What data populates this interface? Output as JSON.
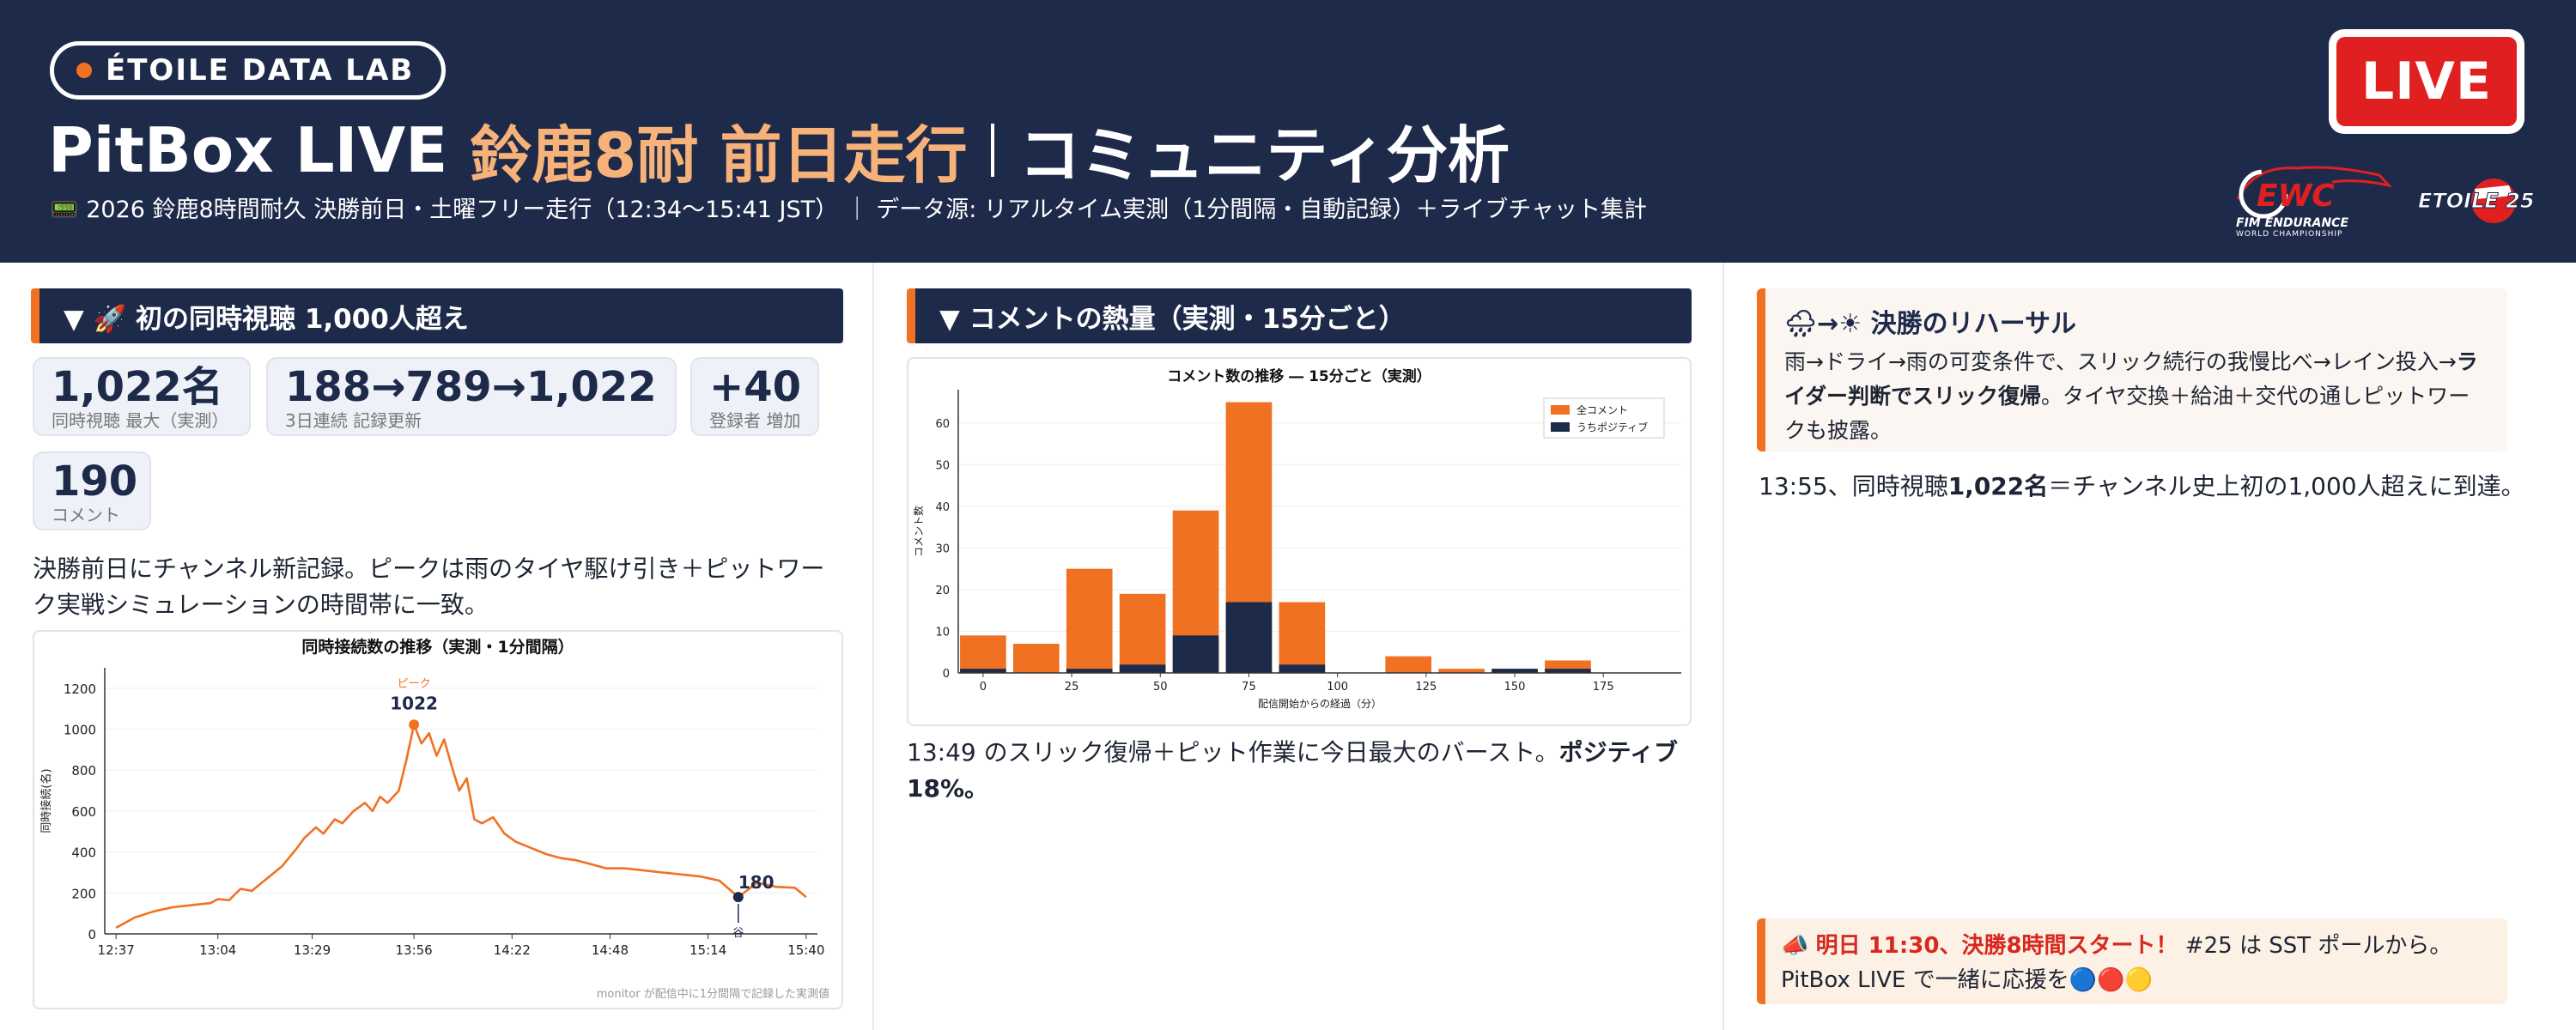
{
  "header": {
    "badge": "ÉTOILE DATA LAB",
    "title_main": "PitBox LIVE",
    "title_highlight": "鈴鹿8耐 前日走行",
    "title_tail": "コミュニティ分析",
    "subtitle_icon": "📟",
    "subtitle": "2026 鈴鹿8時間耐久 決勝前日・土曜フリー走行（12:34〜15:41 JST） ｜ データ源: リアルタイム実測（1分間隔・自動記録）＋ライブチャット集計",
    "live_label": "LIVE",
    "ewc_logo_text": "EWC",
    "ewc_sub1": "FIM ENDURANCE",
    "ewc_sub2": "WORLD CHAMPIONSHIP",
    "etoile_logo_text": "ETOILE 25"
  },
  "col1": {
    "section_title": "▼ 🚀 初の同時視聴 1,000人超え",
    "stats": [
      {
        "value": "1,022名",
        "label": "同時視聴 最大（実測）"
      },
      {
        "value": "188→789→1,022",
        "label": "3日連続 記録更新"
      },
      {
        "value": "+40",
        "label": "登録者 増加"
      },
      {
        "value": "190",
        "label": "コメント"
      }
    ],
    "paragraph": "決勝前日にチャンネル新記録。ピークは雨のタイヤ駆け引き＋ピットワーク実戦シミュレーションの時間帯に一致。",
    "footnote": "monitor が配信中に1分間隔で記録した実測値"
  },
  "col2": {
    "section_title": "▼ コメントの熱量（実測・15分ごと）",
    "paragraph_normal": "13:49 のスリック復帰＋ピット作業に今日最大のバースト。",
    "paragraph_bold": "ポジティブ 18%。"
  },
  "col3": {
    "rehearsal_title_icon": "🌧→☀",
    "rehearsal_title": "決勝のリハーサル",
    "rehearsal_body_1": "雨→ドライ→雨の可変条件で、スリック続行の我慢比べ→レイン投入→",
    "rehearsal_body_bold": "ライダー判断でスリック復帰",
    "rehearsal_body_2": "。タイヤ交換＋給油＋交代の通しピットワークも披露。",
    "note_1": "13:55、同時視聴",
    "note_bold": "1,022名",
    "note_2": "＝チャンネル史上初の1,000人超えに到達。",
    "tomorrow_icon": "📣",
    "tomorrow_red": "明日 11:30、決勝8時間スタート！",
    "tomorrow_text": " #25 は SST ポールから。PitBox LIVE で一緒に応援を🔵🔴🟡"
  },
  "colors": {
    "navy": "#1e2a4a",
    "orange": "#f07122",
    "live_red": "#e02020",
    "accent_text": "#f7b27a"
  },
  "chart_data": [
    {
      "type": "line",
      "title": "同時接続数の推移（実測・1分間隔）",
      "ylabel": "同時接続(名)",
      "xlabel": "",
      "x_ticks": [
        "12:37",
        "13:04",
        "13:29",
        "13:56",
        "14:22",
        "14:48",
        "15:14",
        "15:40"
      ],
      "ylim": [
        0,
        1300
      ],
      "y_ticks": [
        0,
        200,
        400,
        600,
        800,
        1000,
        1200
      ],
      "x_range_minutes": [
        -3,
        186
      ],
      "annotations": [
        {
          "label": "ピーク",
          "value_text": "1022",
          "x_min": 79,
          "y": 1022
        },
        {
          "label": "谷",
          "value_text": "180",
          "x_min": 165,
          "y": 180
        }
      ],
      "series": [
        {
          "values": [
            [
              0,
              30
            ],
            [
              5,
              80
            ],
            [
              10,
              110
            ],
            [
              15,
              130
            ],
            [
              20,
              140
            ],
            [
              25,
              150
            ],
            [
              27,
              170
            ],
            [
              30,
              165
            ],
            [
              33,
              220
            ],
            [
              36,
              210
            ],
            [
              40,
              270
            ],
            [
              44,
              330
            ],
            [
              48,
              420
            ],
            [
              50,
              470
            ],
            [
              53,
              520
            ],
            [
              55,
              490
            ],
            [
              58,
              560
            ],
            [
              60,
              540
            ],
            [
              63,
              600
            ],
            [
              66,
              640
            ],
            [
              68,
              600
            ],
            [
              70,
              670
            ],
            [
              72,
              640
            ],
            [
              75,
              700
            ],
            [
              77,
              850
            ],
            [
              79,
              1022
            ],
            [
              81,
              930
            ],
            [
              83,
              980
            ],
            [
              85,
              870
            ],
            [
              87,
              950
            ],
            [
              89,
              820
            ],
            [
              91,
              700
            ],
            [
              93,
              760
            ],
            [
              95,
              560
            ],
            [
              97,
              540
            ],
            [
              100,
              570
            ],
            [
              103,
              490
            ],
            [
              106,
              450
            ],
            [
              110,
              420
            ],
            [
              114,
              390
            ],
            [
              118,
              370
            ],
            [
              122,
              360
            ],
            [
              126,
              340
            ],
            [
              130,
              320
            ],
            [
              135,
              320
            ],
            [
              140,
              310
            ],
            [
              145,
              300
            ],
            [
              150,
              290
            ],
            [
              155,
              280
            ],
            [
              160,
              260
            ],
            [
              165,
              180
            ],
            [
              170,
              250
            ],
            [
              175,
              230
            ],
            [
              180,
              225
            ],
            [
              183,
              180
            ]
          ]
        }
      ]
    },
    {
      "type": "bar",
      "title": "コメント数の推移 ― 15分ごと（実測）",
      "xlabel": "配信開始からの経過（分）",
      "ylabel": "コメント数",
      "xlim": [
        -7,
        197
      ],
      "ylim": [
        0,
        68
      ],
      "x_ticks": [
        0,
        25,
        50,
        75,
        100,
        125,
        150,
        175
      ],
      "y_ticks": [
        0,
        10,
        20,
        30,
        40,
        50,
        60
      ],
      "legend": "top-right",
      "x": [
        0,
        15,
        30,
        45,
        60,
        75,
        90,
        105,
        120,
        135,
        150,
        165
      ],
      "series": [
        {
          "name": "全コメント",
          "values": [
            9,
            7,
            25,
            19,
            39,
            65,
            17,
            0,
            4,
            1,
            1,
            3
          ]
        },
        {
          "name": "うちポジティブ",
          "values": [
            1,
            0,
            1,
            2,
            9,
            17,
            2,
            0,
            0,
            0,
            1,
            1
          ]
        }
      ]
    }
  ]
}
